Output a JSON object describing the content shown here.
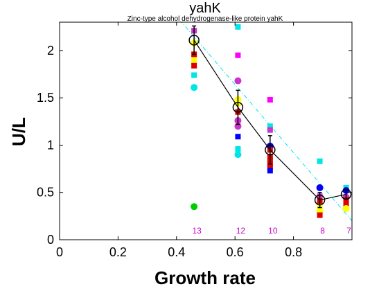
{
  "chart_data": {
    "type": "scatter",
    "title": "yahK",
    "subtitle": "Zinc-type alcohol dehydrogenase-like protein yahK",
    "xlabel": "Growth rate",
    "ylabel": "U/L",
    "xlim": [
      0,
      1.0
    ],
    "ylim": [
      0,
      2.3
    ],
    "xticks": [
      "0",
      "0.2",
      "0.4",
      "0.6",
      "0.8"
    ],
    "yticks": [
      "0",
      "0.5",
      "1",
      "1.5",
      "2"
    ],
    "grid": false,
    "colors": {
      "mean_line": "#000000",
      "fit_line": "#00e5e5",
      "count_text": "#cc00cc"
    },
    "fit_line": {
      "x": [
        0.37,
        1.0
      ],
      "y": [
        2.47,
        0.2
      ]
    },
    "mean_series": {
      "x": [
        0.46,
        0.61,
        0.72,
        0.89,
        0.98
      ],
      "y": [
        2.11,
        1.4,
        0.95,
        0.42,
        0.48
      ],
      "err": [
        0.15,
        0.18,
        0.15,
        0.08,
        0.05
      ]
    },
    "counts": [
      {
        "x": 0.46,
        "label": "13"
      },
      {
        "x": 0.61,
        "label": "12"
      },
      {
        "x": 0.72,
        "label": "10"
      },
      {
        "x": 0.89,
        "label": "8"
      },
      {
        "x": 0.98,
        "label": "7"
      }
    ],
    "points": [
      {
        "x": 0.46,
        "y": 2.21,
        "color": "#cc33cc",
        "shape": "square"
      },
      {
        "x": 0.46,
        "y": 2.08,
        "color": "#ffff00",
        "shape": "circle"
      },
      {
        "x": 0.46,
        "y": 1.96,
        "color": "#dd0000",
        "shape": "square"
      },
      {
        "x": 0.46,
        "y": 1.9,
        "color": "#ffff00",
        "shape": "square"
      },
      {
        "x": 0.46,
        "y": 1.84,
        "color": "#dd0000",
        "shape": "square"
      },
      {
        "x": 0.46,
        "y": 1.74,
        "color": "#00e5e5",
        "shape": "square"
      },
      {
        "x": 0.46,
        "y": 1.61,
        "color": "#00e5e5",
        "shape": "circle"
      },
      {
        "x": 0.46,
        "y": 0.35,
        "color": "#00cc00",
        "shape": "circle"
      },
      {
        "x": 0.61,
        "y": 2.25,
        "color": "#00e5e5",
        "shape": "square"
      },
      {
        "x": 0.61,
        "y": 1.95,
        "color": "#ff00ff",
        "shape": "square"
      },
      {
        "x": 0.61,
        "y": 1.68,
        "color": "#cc33cc",
        "shape": "circle"
      },
      {
        "x": 0.61,
        "y": 1.48,
        "color": "#ffff00",
        "shape": "circle"
      },
      {
        "x": 0.61,
        "y": 1.44,
        "color": "#ffff00",
        "shape": "square"
      },
      {
        "x": 0.61,
        "y": 1.35,
        "color": "#dd0000",
        "shape": "square"
      },
      {
        "x": 0.61,
        "y": 1.26,
        "color": "#cc33cc",
        "shape": "circle"
      },
      {
        "x": 0.61,
        "y": 1.2,
        "color": "#cc33cc",
        "shape": "circle"
      },
      {
        "x": 0.61,
        "y": 1.09,
        "color": "#0000ff",
        "shape": "square"
      },
      {
        "x": 0.61,
        "y": 0.96,
        "color": "#00e5e5",
        "shape": "square"
      },
      {
        "x": 0.61,
        "y": 0.9,
        "color": "#00e5e5",
        "shape": "circle"
      },
      {
        "x": 0.72,
        "y": 1.48,
        "color": "#ff00ff",
        "shape": "square"
      },
      {
        "x": 0.72,
        "y": 1.2,
        "color": "#00e5e5",
        "shape": "square"
      },
      {
        "x": 0.72,
        "y": 1.16,
        "color": "#cc33cc",
        "shape": "square"
      },
      {
        "x": 0.72,
        "y": 0.99,
        "color": "#0000ff",
        "shape": "circle"
      },
      {
        "x": 0.72,
        "y": 0.95,
        "color": "#dd0000",
        "shape": "square"
      },
      {
        "x": 0.72,
        "y": 0.88,
        "color": "#dd0000",
        "shape": "square"
      },
      {
        "x": 0.72,
        "y": 0.84,
        "color": "#dd0000",
        "shape": "square"
      },
      {
        "x": 0.72,
        "y": 0.8,
        "color": "#dd0000",
        "shape": "square"
      },
      {
        "x": 0.72,
        "y": 0.77,
        "color": "#dd0000",
        "shape": "square"
      },
      {
        "x": 0.72,
        "y": 0.73,
        "color": "#0000ff",
        "shape": "square"
      },
      {
        "x": 0.89,
        "y": 0.83,
        "color": "#00e5e5",
        "shape": "square"
      },
      {
        "x": 0.89,
        "y": 0.55,
        "color": "#0000ff",
        "shape": "circle"
      },
      {
        "x": 0.89,
        "y": 0.46,
        "color": "#cc33cc",
        "shape": "square"
      },
      {
        "x": 0.89,
        "y": 0.41,
        "color": "#dd0000",
        "shape": "square"
      },
      {
        "x": 0.89,
        "y": 0.35,
        "color": "#ffff00",
        "shape": "square"
      },
      {
        "x": 0.89,
        "y": 0.3,
        "color": "#ffff00",
        "shape": "circle"
      },
      {
        "x": 0.89,
        "y": 0.26,
        "color": "#dd0000",
        "shape": "square"
      },
      {
        "x": 0.98,
        "y": 0.55,
        "color": "#00e5e5",
        "shape": "square"
      },
      {
        "x": 0.98,
        "y": 0.52,
        "color": "#0000ff",
        "shape": "circle"
      },
      {
        "x": 0.98,
        "y": 0.45,
        "color": "#cc33cc",
        "shape": "circle"
      },
      {
        "x": 0.98,
        "y": 0.42,
        "color": "#dd0000",
        "shape": "square"
      },
      {
        "x": 0.98,
        "y": 0.38,
        "color": "#dd0000",
        "shape": "square"
      },
      {
        "x": 0.98,
        "y": 0.33,
        "color": "#ffff00",
        "shape": "circle"
      }
    ]
  }
}
